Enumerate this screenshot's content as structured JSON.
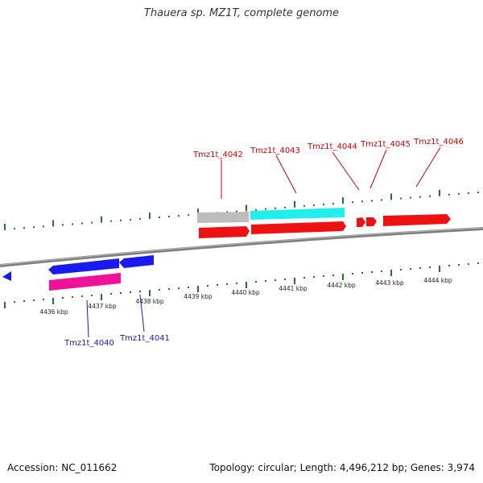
{
  "title": "Thauera sp. MZ1T, complete genome",
  "footer": {
    "accession": "Accession: NC_011662",
    "summary": "Topology: circular; Length: 4,496,212 bp; Genes: 3,974"
  },
  "colors": {
    "backbone": "#8a8a8a",
    "tick": "#1f7a1f",
    "gene_label_top": "#cc0000",
    "gene_label_bottom": "#1a1aaa",
    "red": "#ee1111",
    "cyan": "#22eeee",
    "grey": "#bdbdbd",
    "blue": "#1a1aee",
    "magenta": "#ee1199"
  },
  "scale_labels": [
    "4436 kbp",
    "4437 kbp",
    "4438 kbp",
    "4439 kbp",
    "4440 kbp",
    "4441 kbp",
    "4442 kbp",
    "4443 kbp",
    "4444 kbp"
  ],
  "genes_top": [
    "Tmz1t_4042",
    "Tmz1t_4043",
    "Tmz1t_4044",
    "Tmz1t_4045",
    "Tmz1t_4046"
  ],
  "genes_bottom": [
    "Tmz1t_4040",
    "Tmz1t_4041"
  ]
}
